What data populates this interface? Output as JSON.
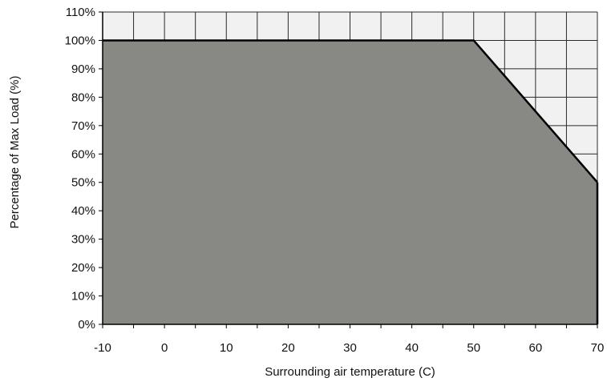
{
  "chart_data": {
    "type": "area",
    "title": "",
    "xlabel": "Surrounding air temperature (C)",
    "ylabel": "Percentage of Max Load (%)",
    "xlim": [
      -10,
      70
    ],
    "ylim": [
      0,
      110
    ],
    "x_ticks": [
      -10,
      0,
      10,
      20,
      30,
      40,
      50,
      60,
      70
    ],
    "x_tick_labels": [
      "-10",
      "0",
      "10",
      "20",
      "30",
      "40",
      "50",
      "60",
      "70"
    ],
    "y_ticks": [
      0,
      10,
      20,
      30,
      40,
      50,
      60,
      70,
      80,
      90,
      100,
      110
    ],
    "y_tick_labels": [
      "0%",
      "10%",
      "20%",
      "30%",
      "40%",
      "50%",
      "60%",
      "70%",
      "80%",
      "90%",
      "100%",
      "110%"
    ],
    "grid": true,
    "grid_x_step": 5,
    "grid_y_step": 10,
    "legend": "none",
    "series": [
      {
        "x": [
          -10,
          50,
          70
        ],
        "y": [
          100,
          100,
          50
        ]
      }
    ],
    "colors": {
      "fill": "#888885",
      "background": "#f1f1f1",
      "grid": "#2a2a2a",
      "line": "#000000"
    }
  }
}
